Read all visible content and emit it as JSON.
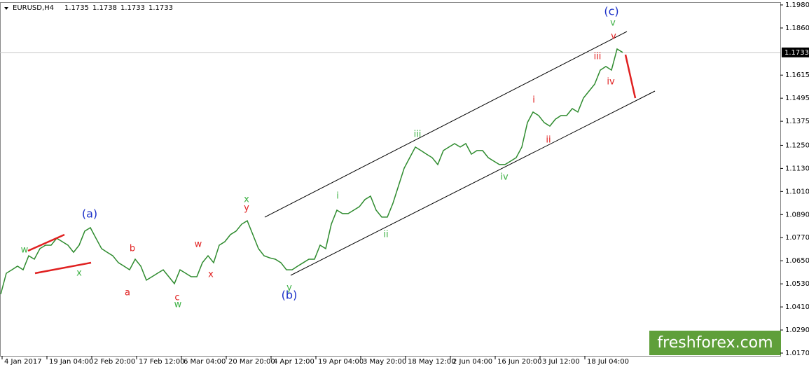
{
  "chart_data": {
    "type": "line",
    "symbol": "EURUSD,H4",
    "ohlc": [
      1.1735,
      1.1738,
      1.1733,
      1.1733
    ],
    "watermark": "freshforex.com",
    "categories": [
      null,
      null,
      null,
      "4 Jan 2017",
      null,
      null,
      null,
      null,
      null,
      null,
      null,
      "19 Jan 04:00",
      null,
      null,
      null,
      null,
      null,
      null,
      null,
      "2 Feb 20:00",
      null,
      null,
      null,
      null,
      null,
      null,
      null,
      "17 Feb 12:00",
      null,
      null,
      null,
      null,
      null,
      null,
      null,
      "6 Mar 04:00",
      null,
      null,
      null,
      null,
      null,
      null,
      null,
      "20 Mar 20:00",
      null,
      null,
      null,
      null,
      null,
      null,
      null,
      "4 Apr 12:00",
      null,
      null,
      null,
      null,
      null,
      null,
      null,
      "19 Apr 04:00",
      null,
      null,
      null,
      null,
      null,
      null,
      null,
      "3 May 20:00",
      null,
      null,
      null,
      null,
      null,
      null,
      null,
      "18 May 12:00",
      null,
      null,
      null,
      null,
      null,
      null,
      null,
      "2 Jun 04:00",
      null,
      null,
      null,
      null,
      null,
      null,
      null,
      "16 Jun 20:00",
      null,
      null,
      null,
      null,
      null,
      null,
      null,
      "3 Jul 12:00",
      null,
      null,
      null,
      null,
      null,
      null,
      null,
      "18 Jul 04:00",
      null,
      null,
      null,
      null
    ],
    "series": [
      {
        "name": "EURUSD",
        "color": "#2e8b2e",
        "values": [
          1.0476,
          1.0585,
          1.0603,
          1.0622,
          1.0603,
          1.0676,
          1.0658,
          1.0713,
          1.0731,
          1.0731,
          1.0767,
          1.0749,
          1.0731,
          1.0694,
          1.0731,
          1.0804,
          1.0822,
          1.0767,
          1.0713,
          1.0694,
          1.0676,
          1.064,
          1.0622,
          1.0603,
          1.0658,
          1.0622,
          1.0549,
          1.0567,
          1.0585,
          1.0603,
          1.0567,
          1.0531,
          1.0603,
          1.0585,
          1.0567,
          1.0567,
          1.064,
          1.0676,
          1.064,
          1.0731,
          1.0749,
          1.0786,
          1.0804,
          1.084,
          1.0858,
          1.0786,
          1.0713,
          1.0676,
          1.0665,
          1.0658,
          1.064,
          1.0603,
          1.0603,
          1.0622,
          1.064,
          1.0658,
          1.0658,
          1.0731,
          1.0713,
          1.084,
          1.0913,
          1.0895,
          1.0895,
          1.0913,
          1.0931,
          1.0968,
          1.0986,
          1.0913,
          1.0877,
          1.0877,
          1.0949,
          1.104,
          1.1131,
          1.1186,
          1.1241,
          1.1223,
          1.1204,
          1.1186,
          1.115,
          1.1223,
          1.1241,
          1.1259,
          1.1241,
          1.1259,
          1.1204,
          1.1223,
          1.1223,
          1.1186,
          1.1168,
          1.115,
          1.115,
          1.1168,
          1.1186,
          1.1241,
          1.1368,
          1.1423,
          1.1405,
          1.1368,
          1.135,
          1.1386,
          1.1405,
          1.1405,
          1.1441,
          1.1423,
          1.1496,
          1.1532,
          1.1568,
          1.1641,
          1.166,
          1.1641,
          1.1751,
          1.1733
        ]
      }
    ],
    "ylim": [
      1.017,
      1.198
    ],
    "yticks": [
      {
        "value": 1.198,
        "label": "1.1980"
      },
      {
        "value": 1.186,
        "label": "1.1860"
      },
      1.1615,
      1.1495,
      1.1375,
      {
        "value": 1.125,
        "label": "1.1250"
      },
      {
        "value": 1.113,
        "label": "1.1130"
      },
      {
        "value": 1.101,
        "label": "1.1010"
      },
      {
        "value": 1.089,
        "label": "1.0890"
      },
      {
        "value": 1.077,
        "label": "1.0770"
      },
      {
        "value": 1.065,
        "label": "1.0650"
      },
      {
        "value": 1.053,
        "label": "1.0530"
      },
      {
        "value": 1.041,
        "label": "1.0410"
      },
      {
        "value": 1.029,
        "label": "1.0290"
      },
      {
        "value": 1.017,
        "label": "1.0170"
      }
    ],
    "annotations": [
      {
        "text": "w",
        "color": "#3cb043"
      },
      {
        "text": "x",
        "color": "#3cb043"
      },
      {
        "text": "(a)",
        "color": "#1a2fc8"
      },
      {
        "text": "b",
        "color": "#e02020"
      },
      {
        "text": "a",
        "color": "#e02020"
      },
      {
        "text": "c",
        "color": "#e02020"
      },
      {
        "text": "w",
        "color": "#3cb043"
      },
      {
        "text": "w",
        "color": "#e02020"
      },
      {
        "text": "x",
        "color": "#e02020"
      },
      {
        "text": "x",
        "color": "#3cb043"
      },
      {
        "text": "y",
        "color": "#e02020"
      },
      {
        "text": "y",
        "color": "#3cb043"
      },
      {
        "text": "(b)",
        "color": "#1a2fc8"
      },
      {
        "text": "i",
        "color": "#3cb043"
      },
      {
        "text": "ii",
        "color": "#3cb043"
      },
      {
        "text": "iii",
        "color": "#3cb043"
      },
      {
        "text": "iv",
        "color": "#3cb043"
      },
      {
        "text": "i",
        "color": "#e02020"
      },
      {
        "text": "ii",
        "color": "#e02020"
      },
      {
        "text": "iii",
        "color": "#e02020"
      },
      {
        "text": "iv",
        "color": "#e02020"
      },
      {
        "text": "v",
        "color": "#e02020"
      },
      {
        "text": "v",
        "color": "#3cb043"
      },
      {
        "text": "(c)",
        "color": "#1a2fc8"
      }
    ]
  }
}
